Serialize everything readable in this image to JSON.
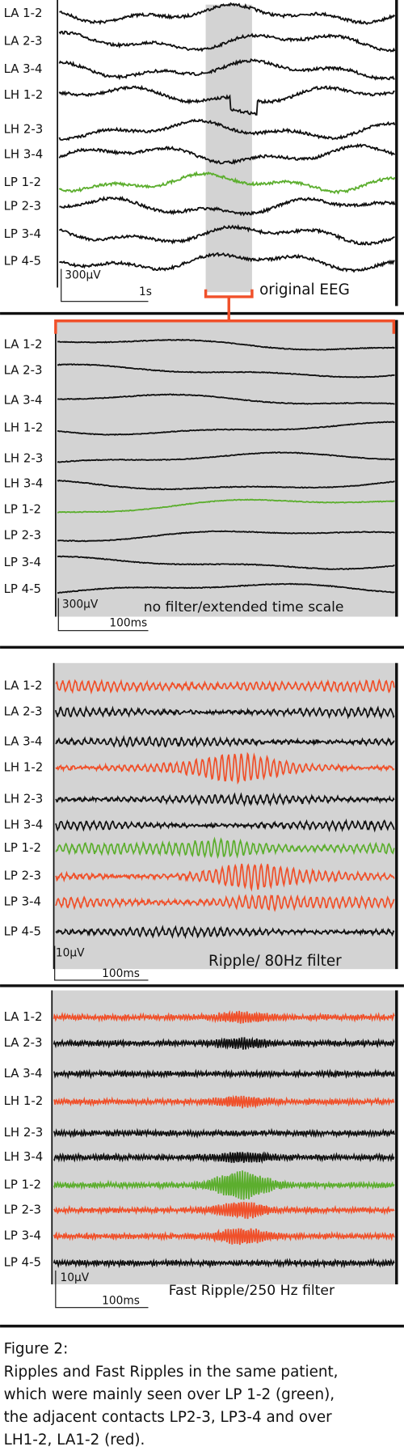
{
  "panels": [
    {
      "channels": [
        "LA 1-2",
        "LA 2-3",
        "LA 3-4",
        "LH 1-2",
        "LH 2-3",
        "LH 3-4",
        "LP 1-2",
        "LP 2-3",
        "LP 3-4",
        "LP 4-5"
      ],
      "scale_amplitude": "300µV",
      "scale_time": "1s",
      "label": "original EEG"
    },
    {
      "channels": [
        "LA 1-2",
        "LA 2-3",
        "LA 3-4",
        "LH 1-2",
        "LH 2-3",
        "LH 3-4",
        "LP 1-2",
        "LP 2-3",
        "LP 3-4",
        "LP 4-5"
      ],
      "scale_amplitude": "300µV",
      "scale_time": "100ms",
      "label": "no filter/extended time scale"
    },
    {
      "channels": [
        "LA 1-2",
        "LA 2-3",
        "LA 3-4",
        "LH 1-2",
        "LH 2-3",
        "LH 3-4",
        "LP 1-2",
        "LP 2-3",
        "LP 3-4",
        "LP 4-5"
      ],
      "scale_amplitude": "10µV",
      "scale_time": "100ms",
      "label": "Ripple/ 80Hz filter"
    },
    {
      "channels": [
        "LA 1-2",
        "LA 2-3",
        "LA 3-4",
        "LH 1-2",
        "LH 2-3",
        "LH 3-4",
        "LP 1-2",
        "LP 2-3",
        "LP 3-4",
        "LP 4-5"
      ],
      "scale_amplitude": "10µV",
      "scale_time": "100ms",
      "label": "Fast Ripple/250 Hz filter"
    }
  ],
  "caption": {
    "title": "Figure 2:",
    "lines": [
      "Ripples and Fast Ripples in the same patient,",
      "which were mainly seen over LP 1-2 (green),",
      "the adjacent contacts LP2-3, LP3-4 and over",
      "LH1-2, LA1-2 (red)."
    ]
  }
}
